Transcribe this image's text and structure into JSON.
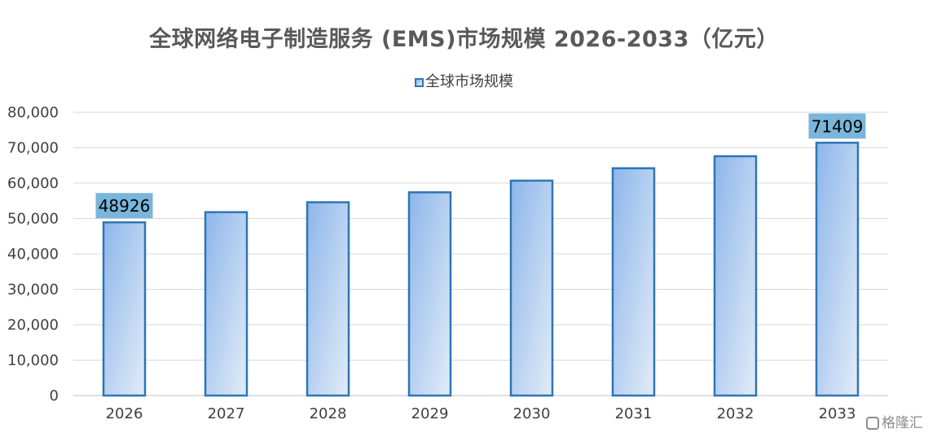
{
  "chart_data": {
    "type": "bar",
    "title": "全球网络电子制造服务 (EMS)市场规模 2026-2033（亿元）",
    "categories": [
      "2026",
      "2027",
      "2028",
      "2029",
      "2030",
      "2031",
      "2032",
      "2033"
    ],
    "series": [
      {
        "name": "全球市场规模",
        "values": [
          48926,
          51800,
          54600,
          57400,
          60700,
          64200,
          67600,
          71409
        ],
        "color": "#2e75b6"
      }
    ],
    "data_labels": [
      {
        "category": "2026",
        "text": "48926"
      },
      {
        "category": "2033",
        "text": "71409"
      }
    ],
    "y_ticks": [
      "0",
      "10,000",
      "20,000",
      "30,000",
      "40,000",
      "50,000",
      "60,000",
      "70,000",
      "80,000"
    ],
    "ylim": [
      0,
      80000
    ],
    "grid": true,
    "legend": "top-center",
    "colors": {
      "bar_stroke": "#2e75b6",
      "bar_fill_top": "#8db6ea",
      "bar_fill_bottom": "#e2ecf8",
      "label_bg": "#79b6d9",
      "grid": "#d9d9d9"
    }
  },
  "watermark": {
    "text": "格隆汇"
  }
}
